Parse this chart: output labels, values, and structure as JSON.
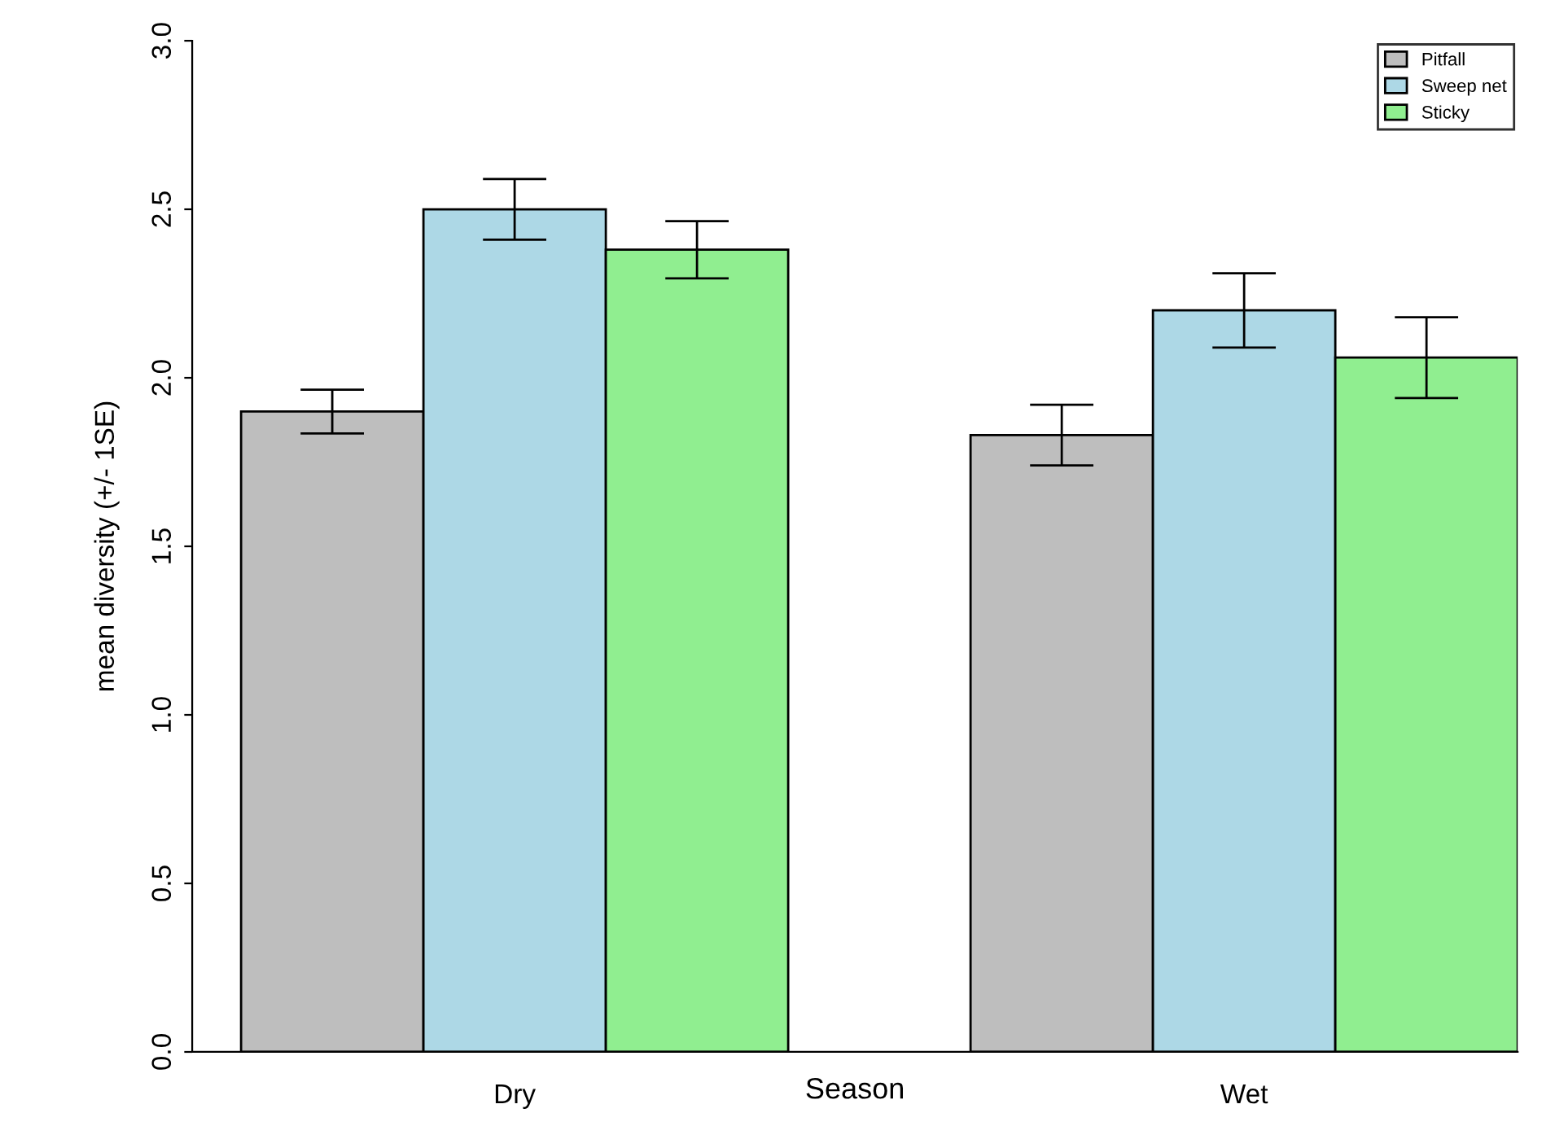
{
  "chart_data": {
    "type": "bar",
    "xlabel": "Season",
    "ylabel": "mean diversity (+/- 1SE)",
    "categories": [
      "Dry",
      "Wet"
    ],
    "series": [
      {
        "name": "Pitfall",
        "color": "#bebebe",
        "values": [
          1.9,
          1.83
        ],
        "errors": [
          0.065,
          0.09
        ]
      },
      {
        "name": "Sweep net",
        "color": "#add8e6",
        "values": [
          2.5,
          2.2
        ],
        "errors": [
          0.09,
          0.11
        ]
      },
      {
        "name": "Sticky",
        "color": "#90ee90",
        "values": [
          2.38,
          2.06
        ],
        "errors": [
          0.085,
          0.12
        ]
      }
    ],
    "ylim": [
      0,
      3
    ],
    "yticks": [
      {
        "value": 0,
        "label": "0.0"
      },
      0.5,
      {
        "value": 1,
        "label": "1.0"
      },
      1.5,
      {
        "value": 2,
        "label": "2.0"
      },
      2.5,
      {
        "value": 3,
        "label": "3.0"
      }
    ],
    "legend": "top right",
    "grid": false
  }
}
